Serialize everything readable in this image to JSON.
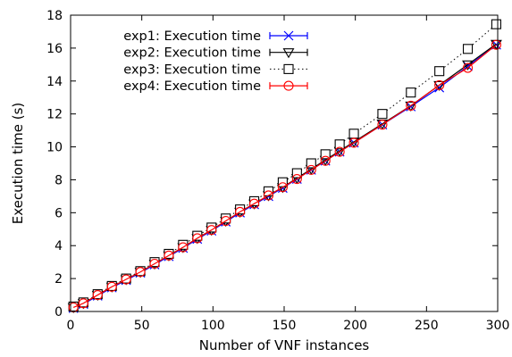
{
  "chart_data": {
    "type": "line",
    "xlabel": "Number of VNF instances",
    "ylabel": "Execution time (s)",
    "xlim": [
      0,
      300
    ],
    "ylim": [
      0,
      18
    ],
    "xticks": [
      0,
      50,
      100,
      150,
      200,
      250,
      300
    ],
    "yticks": [
      0,
      2,
      4,
      6,
      8,
      10,
      12,
      14,
      16,
      18
    ],
    "grid": false,
    "legend_position": "top-left",
    "x": [
      2,
      9,
      19,
      29,
      39,
      49,
      59,
      69,
      79,
      89,
      99,
      109,
      119,
      129,
      139,
      149,
      159,
      169,
      179,
      189,
      199,
      219,
      239,
      259,
      279,
      299
    ],
    "series": [
      {
        "name": "exp1: Execution time",
        "color": "#0000ff",
        "marker": "x",
        "line": "solid",
        "values": [
          0.2,
          0.45,
          0.95,
          1.45,
          1.9,
          2.35,
          2.85,
          3.35,
          3.85,
          4.4,
          4.9,
          5.45,
          6.0,
          6.5,
          7.0,
          7.5,
          8.05,
          8.6,
          9.15,
          9.7,
          10.25,
          11.35,
          12.45,
          13.6,
          14.9,
          16.2
        ]
      },
      {
        "name": "exp2: Execution time",
        "color": "#000000",
        "marker": "triangle-down",
        "line": "solid",
        "values": [
          0.25,
          0.5,
          1.0,
          1.5,
          1.95,
          2.4,
          2.9,
          3.4,
          3.9,
          4.45,
          4.95,
          5.5,
          6.05,
          6.55,
          7.05,
          7.55,
          8.1,
          8.65,
          9.2,
          9.75,
          10.3,
          11.4,
          12.5,
          13.75,
          15.0,
          16.25
        ]
      },
      {
        "name": "exp3: Execution time",
        "color": "#000000",
        "marker": "square",
        "line": "dotted",
        "values": [
          0.3,
          0.55,
          1.05,
          1.55,
          2.0,
          2.45,
          3.0,
          3.5,
          4.05,
          4.6,
          5.1,
          5.65,
          6.2,
          6.7,
          7.3,
          7.85,
          8.4,
          9.0,
          9.55,
          10.15,
          10.8,
          12.0,
          13.3,
          14.6,
          15.95,
          17.45
        ]
      },
      {
        "name": "exp4: Execution time",
        "color": "#ff0000",
        "marker": "circle",
        "line": "solid",
        "values": [
          0.25,
          0.5,
          1.0,
          1.5,
          1.95,
          2.4,
          2.9,
          3.4,
          3.9,
          4.45,
          4.95,
          5.5,
          6.05,
          6.55,
          7.05,
          7.55,
          8.05,
          8.6,
          9.15,
          9.7,
          10.25,
          11.35,
          12.5,
          13.75,
          14.8,
          16.2
        ]
      }
    ]
  }
}
